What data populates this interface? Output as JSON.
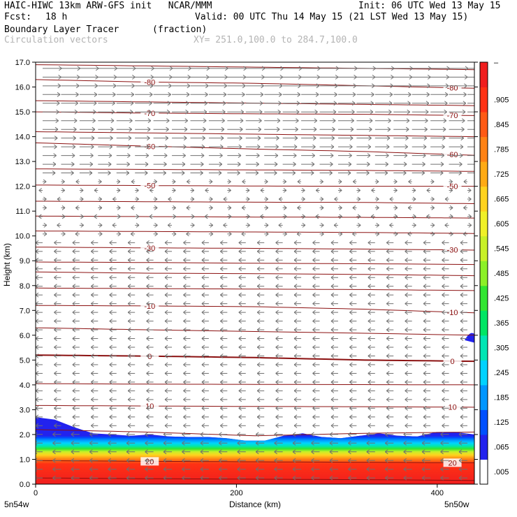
{
  "header": {
    "line1_left": "HAIC-HIWC 13km ARW-GFS init   NCAR/MMM",
    "line1_right": "Init: 06 UTC Wed 13 May 15",
    "line2_fcst_label": "Fcst:",
    "line2_fcst_value": "18 h",
    "line2_valid": "Valid: 00 UTC Thu 14 May 15 (21 LST Wed 13 May 15)",
    "field_name": "Boundary Layer Tracer",
    "field_units": "(fraction)",
    "vector_label": "Circulation vectors",
    "xy_label": "XY= 251.0,100.0 to 284.7,100.0"
  },
  "chart_data": {
    "type": "heatmap",
    "xlabel": "Distance (km)",
    "ylabel": "Height (km)",
    "xlim": [
      0,
      437
    ],
    "ylim": [
      0.0,
      17.0
    ],
    "x_ticks": [
      0,
      200,
      400
    ],
    "y_ticks": [
      "0.0",
      "1.0",
      "2.0",
      "3.0",
      "4.0",
      "5.0",
      "6.0",
      "7.0",
      "8.0",
      "9.0",
      "10.0",
      "11.0",
      "12.0",
      "13.0",
      "14.0",
      "15.0",
      "16.0",
      "17.0"
    ],
    "x_endpoint_left": "5n54w",
    "x_endpoint_right": "5n50w",
    "colorbar": {
      "labels": [
        ".005",
        ".065",
        ".125",
        ".185",
        ".245",
        ".305",
        ".365",
        ".425",
        ".485",
        ".545",
        ".605",
        ".665",
        ".725",
        ".785",
        ".845",
        ".905"
      ],
      "top_label": "–",
      "colors": [
        "#ffffff",
        "#2222ee",
        "#0050ff",
        "#0096ff",
        "#00d2ff",
        "#00e6b4",
        "#00e664",
        "#32e632",
        "#8cf028",
        "#c8f028",
        "#f0f028",
        "#ffd21e",
        "#ffaa14",
        "#ff8214",
        "#ff5a14",
        "#ff3214",
        "#f01e1e"
      ]
    },
    "contours": [
      {
        "label": "-80",
        "heights": [
          16.3,
          16.2,
          16.15,
          16.05,
          15.95
        ]
      },
      {
        "label": "-70",
        "heights": [
          15.0,
          14.95,
          14.92,
          14.9,
          14.85
        ]
      },
      {
        "label": "-60",
        "heights": [
          13.75,
          13.62,
          13.5,
          13.4,
          13.25
        ]
      },
      {
        "label": "-50",
        "heights": [
          12.05,
          12.03,
          12.01,
          12.0,
          12.0
        ]
      },
      {
        "label": "-30",
        "heights": [
          9.55,
          9.52,
          9.5,
          9.47,
          9.43
        ]
      },
      {
        "label": "-10",
        "heights": [
          7.2,
          7.18,
          7.15,
          7.05,
          6.9
        ]
      },
      {
        "label": "0",
        "heights": [
          5.2,
          5.16,
          5.1,
          5.0,
          4.95
        ]
      },
      {
        "label": "10",
        "heights": [
          3.17,
          3.15,
          3.13,
          3.12,
          3.1
        ]
      },
      {
        "label": "20",
        "heights": [
          0.95,
          0.92,
          0.9,
          0.88,
          0.86
        ]
      }
    ],
    "contours_unlabeled": [
      {
        "heights": [
          16.9,
          16.85,
          16.8,
          16.75,
          16.7
        ]
      },
      {
        "heights": [
          15.45,
          15.4,
          15.35,
          15.3,
          15.25
        ]
      },
      {
        "heights": [
          14.2,
          14.15,
          14.1,
          14.05,
          14.0
        ]
      },
      {
        "heights": [
          12.7,
          12.68,
          12.66,
          12.64,
          12.6
        ]
      },
      {
        "heights": [
          11.4,
          11.38,
          11.36,
          11.35,
          11.3
        ]
      },
      {
        "heights": [
          10.8,
          10.78,
          10.76,
          10.75,
          10.72
        ]
      },
      {
        "heights": [
          10.2,
          10.18,
          10.16,
          10.14,
          10.1
        ]
      },
      {
        "heights": [
          8.95,
          8.93,
          8.9,
          8.88,
          8.85
        ]
      },
      {
        "heights": [
          8.55,
          8.5,
          8.48,
          8.45,
          8.4
        ]
      },
      {
        "heights": [
          7.9,
          7.88,
          7.86,
          7.84,
          7.8
        ]
      },
      {
        "heights": [
          6.3,
          6.22,
          6.15,
          6.08,
          6.0
        ]
      },
      {
        "heights": [
          4.05,
          4.03,
          4.02,
          4.01,
          4.0
        ]
      },
      {
        "heights": [
          2.2,
          2.1,
          1.95,
          2.05,
          2.1
        ]
      },
      {
        "heights": [
          0.25,
          0.22,
          0.2,
          0.18,
          0.15
        ]
      }
    ],
    "boundary_layer_top_km": [
      2.7,
      2.6,
      2.3,
      2.05,
      2.0,
      1.95,
      2.0,
      1.92,
      1.9,
      1.9,
      1.85,
      1.75,
      1.75,
      1.95,
      2.05,
      1.9,
      1.85,
      1.95,
      2.05,
      1.95,
      1.92,
      2.1,
      2.1,
      2.0
    ]
  }
}
